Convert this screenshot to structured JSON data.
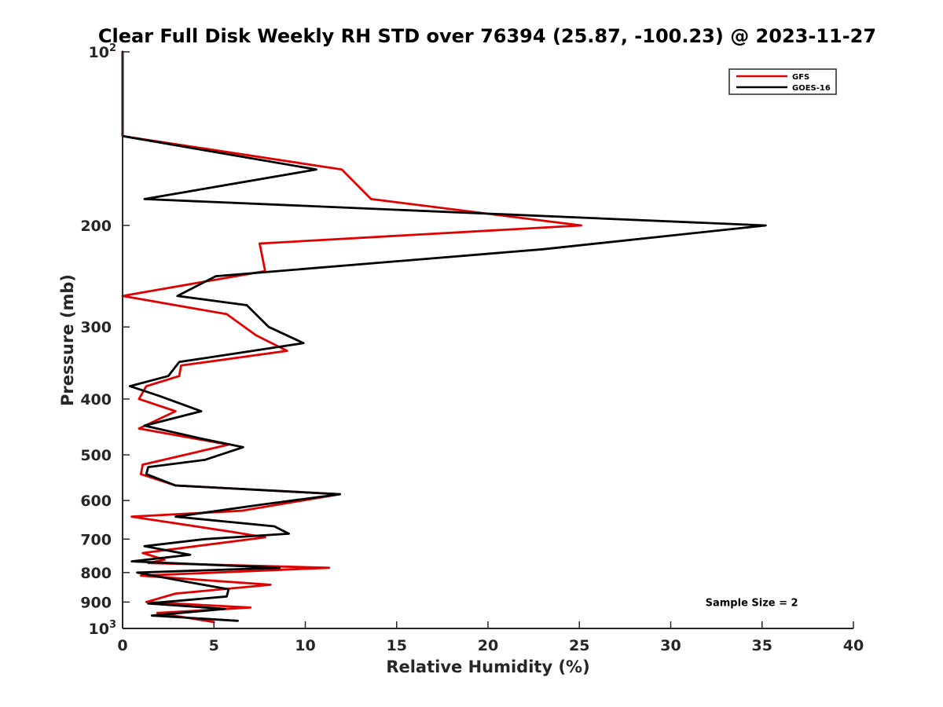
{
  "chart_data": {
    "type": "line",
    "title": "Clear Full Disk Weekly RH STD over 76394 (25.87, -100.23) @ 2023-11-27",
    "xlabel": "Relative Humidity (%)",
    "ylabel": "Pressure (mb)",
    "xlim": [
      0,
      40
    ],
    "ylim": [
      100,
      1000
    ],
    "y_scale": "log",
    "y_reversed": true,
    "x_ticks": [
      {
        "v": 0,
        "label": "0"
      },
      {
        "v": 5,
        "label": "5"
      },
      {
        "v": 10,
        "label": "10"
      },
      {
        "v": 15,
        "label": "15"
      },
      {
        "v": 20,
        "label": "20"
      },
      {
        "v": 25,
        "label": "25"
      },
      {
        "v": 30,
        "label": "30"
      },
      {
        "v": 35,
        "label": "35"
      },
      {
        "v": 40,
        "label": "40"
      }
    ],
    "y_ticks": [
      {
        "v": 100,
        "base": "10",
        "exp": "2"
      },
      {
        "v": 200,
        "label": "200"
      },
      {
        "v": 300,
        "label": "300"
      },
      {
        "v": 400,
        "label": "400"
      },
      {
        "v": 500,
        "label": "500"
      },
      {
        "v": 600,
        "label": "600"
      },
      {
        "v": 700,
        "label": "700"
      },
      {
        "v": 800,
        "label": "800"
      },
      {
        "v": 900,
        "label": "900"
      },
      {
        "v": 1000,
        "base": "10",
        "exp": "3"
      }
    ],
    "grid": false,
    "legend_position": "top-right",
    "series": [
      {
        "name": "GFS",
        "color": "#e00000",
        "x": [
          0,
          0,
          0,
          12.0,
          13.6,
          25.1,
          7.5,
          7.8,
          0,
          5.7,
          7.3,
          9.0,
          3.2,
          3.1,
          1.3,
          0.9,
          2.9,
          0.9,
          5.8,
          1.1,
          1.0,
          2.9,
          11.9,
          6.5,
          0.5,
          6.0,
          7.8,
          1.1,
          2.3,
          1.4,
          11.3,
          1.0,
          8.1,
          2.9,
          1.3,
          7.0,
          1.9,
          5.0
        ],
        "y": [
          100,
          120,
          140,
          160,
          180,
          200,
          215,
          240,
          265,
          285,
          310,
          330,
          350,
          365,
          380,
          400,
          420,
          450,
          480,
          520,
          540,
          565,
          585,
          625,
          640,
          680,
          695,
          740,
          760,
          770,
          785,
          810,
          840,
          870,
          900,
          920,
          940,
          975
        ]
      },
      {
        "name": "GOES-16",
        "color": "#000000",
        "x": [
          0,
          0,
          0,
          10.6,
          1.2,
          35.2,
          23.0,
          5.1,
          3.0,
          6.8,
          8.0,
          9.9,
          3.1,
          2.5,
          0.4,
          2.0,
          4.3,
          1.2,
          4.5,
          6.6,
          4.5,
          1.4,
          1.3,
          2.9,
          11.9,
          7.6,
          2.9,
          8.3,
          9.1,
          4.5,
          1.2,
          3.7,
          0.5,
          8.6,
          0.8,
          3.5,
          5.8,
          5.7,
          1.4,
          5.6,
          1.6,
          6.3
        ],
        "y": [
          100,
          120,
          140,
          160,
          180,
          200,
          220,
          245,
          265,
          275,
          300,
          320,
          345,
          365,
          380,
          395,
          420,
          445,
          470,
          485,
          510,
          525,
          540,
          565,
          585,
          610,
          640,
          665,
          685,
          700,
          720,
          745,
          765,
          785,
          800,
          830,
          855,
          880,
          905,
          925,
          950,
          970
        ]
      }
    ],
    "annotations": [
      {
        "text": "Sample Size = 2",
        "x": 32.5,
        "y": 900
      }
    ]
  }
}
